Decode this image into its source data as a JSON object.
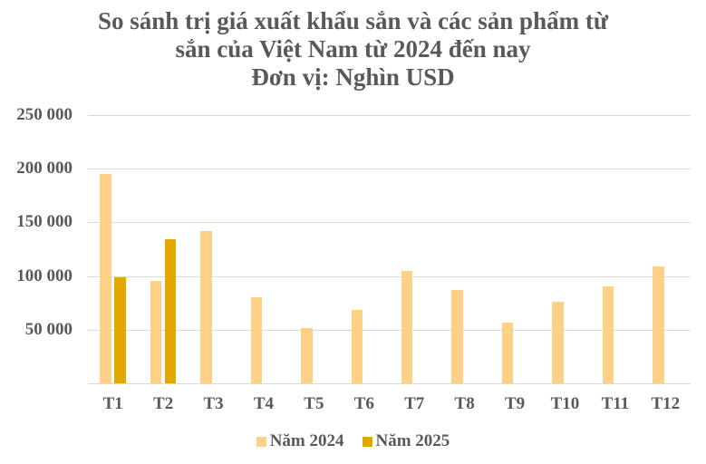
{
  "chart_data": {
    "type": "bar",
    "title_lines": [
      "So sánh trị giá xuất khẩu sắn và các sản phẩm từ",
      "sắn của Việt Nam từ 2024 đến nay",
      "Đơn vị: Nghìn USD"
    ],
    "xlabel": "",
    "ylabel": "",
    "categories": [
      "T1",
      "T2",
      "T3",
      "T4",
      "T5",
      "T6",
      "T7",
      "T8",
      "T9",
      "T10",
      "T11",
      "T12"
    ],
    "series": [
      {
        "name": "Năm 2024",
        "color": "#ffd186",
        "values": [
          195000,
          95500,
          142000,
          80000,
          51500,
          68500,
          104500,
          87000,
          56500,
          76000,
          90500,
          109000
        ]
      },
      {
        "name": "Năm 2025",
        "color": "#e2a800",
        "values": [
          98800,
          134500,
          null,
          null,
          null,
          null,
          null,
          null,
          null,
          null,
          null,
          null
        ]
      }
    ],
    "ylim": [
      0,
      250000
    ],
    "yticks": [
      0,
      50000,
      100000,
      150000,
      200000,
      250000
    ],
    "ytick_labels": [
      "",
      "50 000",
      "100 000",
      "150 000",
      "200 000",
      "250 000"
    ],
    "grid": true,
    "legend_position": "bottom"
  }
}
